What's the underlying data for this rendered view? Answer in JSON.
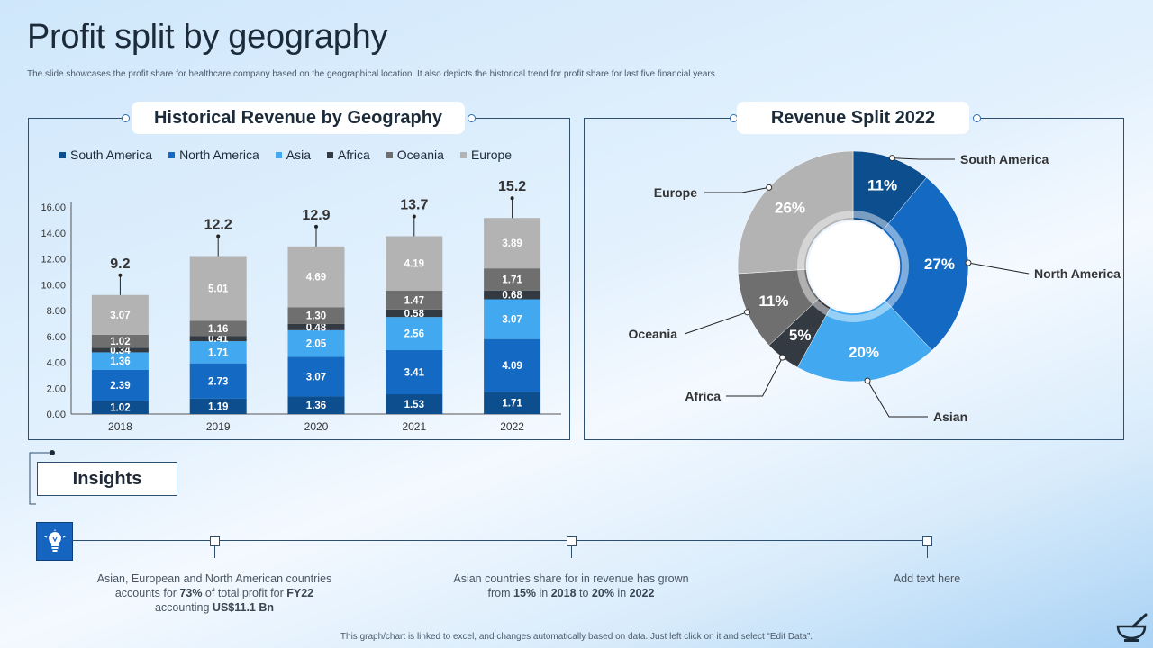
{
  "title": "Profit split by geography",
  "subtitle": "The slide showcases the profit share for healthcare company based on the geographical location. It also depicts the historical trend for profit share for last five financial years.",
  "colors": {
    "south_america": "#0d4f8e",
    "north_america": "#1469c2",
    "asia": "#42a9f0",
    "africa": "#333a42",
    "oceania": "#6f6f6f",
    "europe": "#b3b3b3"
  },
  "left_panel": {
    "title": "Historical Revenue by Geography"
  },
  "right_panel": {
    "title": "Revenue Split 2022"
  },
  "chart_data": [
    {
      "type": "bar",
      "stacked": true,
      "title": "Historical Revenue by Geography",
      "categories": [
        "2018",
        "2019",
        "2020",
        "2021",
        "2022"
      ],
      "series": [
        {
          "name": "South America",
          "values": [
            1.02,
            1.19,
            1.36,
            1.53,
            1.71
          ]
        },
        {
          "name": "North America",
          "values": [
            2.39,
            2.73,
            3.07,
            3.41,
            4.09
          ]
        },
        {
          "name": "Asia",
          "values": [
            1.36,
            1.71,
            2.05,
            2.56,
            3.07
          ]
        },
        {
          "name": "Africa",
          "values": [
            0.34,
            0.41,
            0.48,
            0.58,
            0.68
          ]
        },
        {
          "name": "Oceania",
          "values": [
            1.02,
            1.16,
            1.3,
            1.47,
            1.71
          ]
        },
        {
          "name": "Europe",
          "values": [
            3.07,
            5.01,
            4.69,
            4.19,
            3.89
          ]
        }
      ],
      "totals": [
        "9.2",
        "12.2",
        "12.9",
        "13.7",
        "15.2"
      ],
      "ylim": [
        0,
        16
      ],
      "yticks": [
        "0.00",
        "2.00",
        "4.00",
        "6.00",
        "8.00",
        "10.00",
        "12.00",
        "14.00",
        "16.00"
      ],
      "legend": "top",
      "grid": false
    },
    {
      "type": "pie",
      "donut": true,
      "title": "Revenue Split 2022",
      "slices": [
        {
          "name": "South America",
          "value": 11,
          "label": "11%"
        },
        {
          "name": "North America",
          "value": 27,
          "label": "27%"
        },
        {
          "name": "Asian",
          "value": 20,
          "label": "20%"
        },
        {
          "name": "Africa",
          "value": 5,
          "label": "5%"
        },
        {
          "name": "Oceania",
          "value": 11,
          "label": "11%"
        },
        {
          "name": "Europe",
          "value": 26,
          "label": "26%"
        }
      ]
    }
  ],
  "insights": {
    "heading": "Insights",
    "items": [
      {
        "pre": "Asian, European and North American countries accounts for ",
        "b1": "73%",
        "mid": " of total profit for ",
        "b2": "FY22",
        "mid2": " accounting ",
        "b3": "US$11.1 Bn"
      },
      {
        "pre": "Asian countries share for in revenue  has grown from ",
        "b1": "15%",
        "mid": " in ",
        "b2": "2018",
        "mid2": " to ",
        "b3": "20%",
        "mid3": " in ",
        "b4": "2022"
      },
      {
        "text": "Add text here"
      }
    ]
  },
  "footer": "This graph/chart is linked to excel, and changes automatically based on data. Just left click on it and select “Edit Data”."
}
